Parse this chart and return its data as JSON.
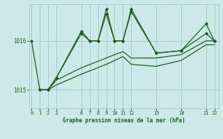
{
  "title": "Graphe pression niveau de la mer (hPa)",
  "bg_color": "#cce8e8",
  "grid_color": "#aacaca",
  "line_color": "#1a5c1a",
  "yticks": [
    1015,
    1016
  ],
  "ytick_labels": [
    "1015",
    "1016"
  ],
  "xticks": [
    0,
    1,
    2,
    3,
    6,
    7,
    8,
    9,
    10,
    11,
    12,
    15,
    18,
    21,
    22
  ],
  "xlim": [
    -0.3,
    22.5
  ],
  "ylim": [
    1014.62,
    1016.75
  ],
  "series": [
    {
      "x": [
        0,
        1,
        2,
        3,
        6,
        7,
        8,
        9,
        10,
        11,
        12,
        15,
        18,
        21,
        22
      ],
      "y": [
        1016.0,
        1015.0,
        1015.0,
        1015.25,
        1016.2,
        1016.0,
        1016.0,
        1016.55,
        1016.0,
        1016.0,
        1016.6,
        1015.75,
        1015.8,
        1016.15,
        1016.0
      ],
      "marker": "D"
    },
    {
      "x": [
        1,
        2,
        3,
        6,
        7,
        8,
        9,
        10,
        11,
        12,
        15,
        18,
        21,
        22
      ],
      "y": [
        1015.0,
        1015.0,
        1015.25,
        1016.15,
        1016.0,
        1016.0,
        1016.65,
        1016.0,
        1016.0,
        1016.65,
        1015.75,
        1015.8,
        1016.35,
        1016.0
      ],
      "marker": "D"
    },
    {
      "x": [
        1,
        2,
        3,
        6,
        9,
        10,
        11,
        12,
        15,
        18,
        21,
        22
      ],
      "y": [
        1015.0,
        1015.0,
        1015.2,
        1015.45,
        1015.65,
        1015.72,
        1015.78,
        1015.65,
        1015.65,
        1015.72,
        1016.0,
        1016.0
      ],
      "marker": null
    },
    {
      "x": [
        1,
        2,
        3,
        6,
        9,
        10,
        11,
        12,
        15,
        18,
        21,
        22
      ],
      "y": [
        1015.0,
        1015.0,
        1015.1,
        1015.32,
        1015.52,
        1015.6,
        1015.68,
        1015.52,
        1015.48,
        1015.6,
        1015.92,
        1015.92
      ],
      "marker": null
    }
  ]
}
